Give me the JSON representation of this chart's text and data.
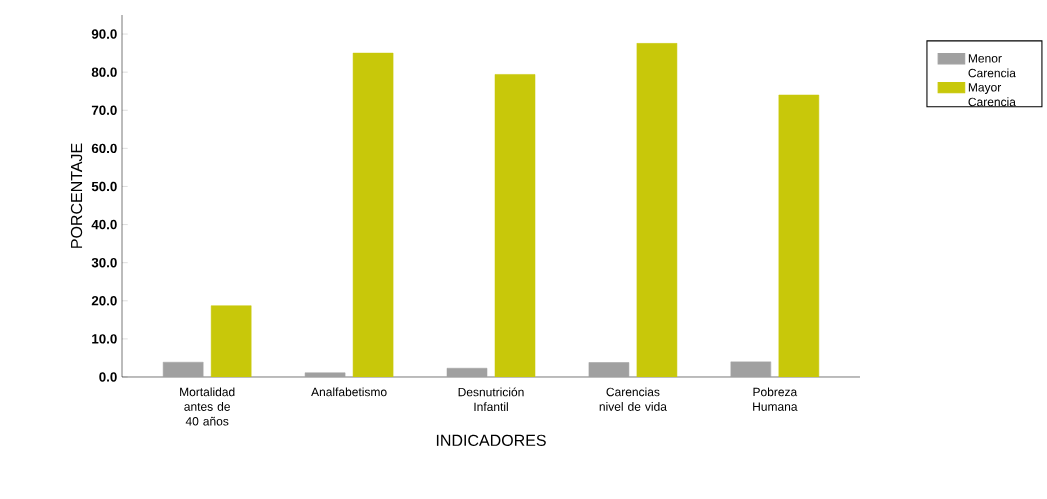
{
  "chart_data": {
    "type": "bar",
    "xlabel": "INDICADORES",
    "ylabel": "PORCENTAJE",
    "categories": [
      "Mortalidad antes de 40 años",
      "Analfabetismo",
      "Desnutrición Infantil",
      "Carencias nivel de vida",
      "Pobreza Humana"
    ],
    "series": [
      {
        "name": "Menor Carencia",
        "color": "#a0a0a0",
        "values": [
          3.9,
          1.1,
          2.3,
          3.8,
          4.0
        ]
      },
      {
        "name": "Mayor Carencia",
        "color": "#c8c80a",
        "values": [
          18.7,
          85.0,
          79.4,
          87.6,
          74.0
        ]
      }
    ],
    "ylim": [
      0,
      95
    ],
    "yticks": [
      {
        "value": 0,
        "label": "0.0"
      },
      {
        "value": 10,
        "label": "10.0"
      },
      {
        "value": 20,
        "label": "20.0"
      },
      {
        "value": 30,
        "label": "30.0"
      },
      {
        "value": 40,
        "label": "40.0"
      },
      {
        "value": 50,
        "label": "50.0"
      },
      {
        "value": 60,
        "label": "60.0"
      },
      {
        "value": 70,
        "label": "70.0"
      },
      {
        "value": 80,
        "label": "80.0"
      },
      {
        "value": 90,
        "label": "90.0"
      }
    ],
    "grid": false,
    "legend": "right"
  }
}
